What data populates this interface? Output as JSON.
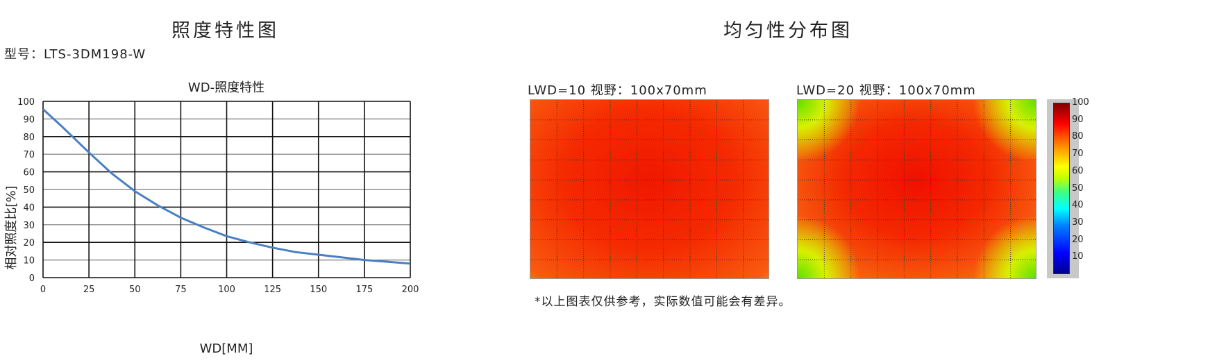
{
  "left": {
    "title": "照度特性图",
    "model_label": "型号：LTS-3DM198-W"
  },
  "right": {
    "title": "均匀性分布图",
    "heatmaps": [
      {
        "label": "LWD=10   视野：100x70mm"
      },
      {
        "label": "LWD=20   视野：100x70mm"
      }
    ],
    "colorbar": {
      "ticks": [
        "100",
        "90",
        "80",
        "70",
        "60",
        "50",
        "40",
        "30",
        "20",
        "10"
      ],
      "range": [
        0,
        100
      ],
      "colormap": "jet"
    },
    "note": "*以上图表仅供参考，实际数值可能会有差异。"
  },
  "chart_data": {
    "type": "line",
    "title": "WD-照度特性",
    "xlabel": "WD[MM]",
    "ylabel": "相对照度比[%]",
    "xlim": [
      0,
      200
    ],
    "ylim": [
      0,
      100
    ],
    "xticks": [
      "0",
      "25",
      "50",
      "75",
      "100",
      "125",
      "150",
      "175",
      "200"
    ],
    "yticks": [
      "0",
      "10",
      "20",
      "30",
      "40",
      "50",
      "60",
      "70",
      "80",
      "90",
      "100"
    ],
    "grid": true,
    "line_color": "#4a7fc1",
    "x": [
      0,
      10,
      25,
      37.5,
      50,
      62.5,
      75,
      87.5,
      100,
      112.5,
      125,
      137.5,
      150,
      162.5,
      175,
      187.5,
      200
    ],
    "y": [
      95.5,
      86,
      71,
      59,
      49,
      41,
      34,
      28.5,
      23.5,
      20,
      17,
      14.5,
      13,
      11.5,
      10,
      9,
      8
    ]
  }
}
